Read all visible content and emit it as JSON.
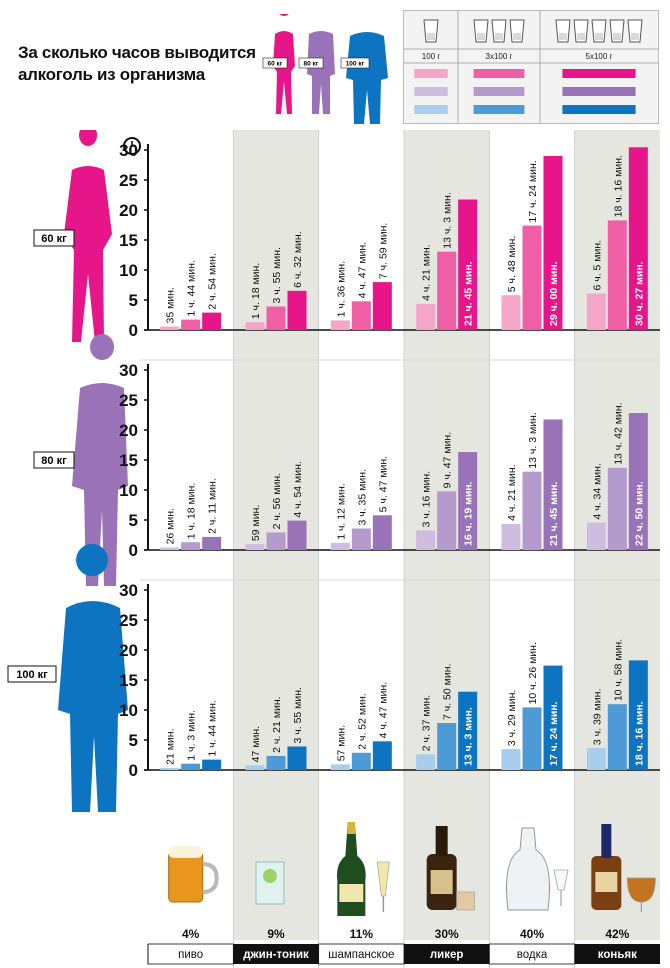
{
  "title": {
    "line1": "За сколько часов выводится",
    "line2": "алкоголь из организма"
  },
  "weights": [
    {
      "label": "60 кг",
      "color": "#e6168a"
    },
    {
      "label": "80 кг",
      "color": "#9a72b8"
    },
    {
      "label": "100 кг",
      "color": "#0c74c0"
    }
  ],
  "legend": {
    "columns": [
      "100 г",
      "3x100 г",
      "5x100 г"
    ],
    "glass_counts": [
      1,
      3,
      5
    ],
    "colors": [
      [
        "#f4a6c8",
        "#ee5fa6",
        "#e6168a"
      ],
      [
        "#cfbde0",
        "#b49acd",
        "#9a72b8"
      ],
      [
        "#a9cdec",
        "#4e9ad6",
        "#0c74c0"
      ]
    ]
  },
  "categories": [
    {
      "name": "пиво",
      "percent": "4%",
      "shaded": false,
      "dark_label": false
    },
    {
      "name": "джин-тоник",
      "percent": "9%",
      "shaded": true,
      "dark_label": true
    },
    {
      "name": "шампанское",
      "percent": "11%",
      "shaded": false,
      "dark_label": false
    },
    {
      "name": "ликер",
      "percent": "30%",
      "shaded": true,
      "dark_label": true
    },
    {
      "name": "водка",
      "percent": "40%",
      "shaded": false,
      "dark_label": false
    },
    {
      "name": "коньяк",
      "percent": "42%",
      "shaded": true,
      "dark_label": true
    }
  ],
  "chart_data": {
    "type": "bar",
    "ylim": [
      0,
      30
    ],
    "yticks": [
      0,
      5,
      10,
      15,
      20,
      25,
      30
    ],
    "y_unit_icon": "clock-icon",
    "panels": [
      {
        "weight": "60 кг",
        "series": [
          {
            "name": "100 г",
            "values": [
              0.58,
              1.3,
              1.6,
              4.35,
              5.8,
              6.08
            ],
            "labels": [
              "35 мин.",
              "1 ч. 18 мин.",
              "1 ч. 36 мин.",
              "4 ч. 21 мин.",
              "5 ч. 48 мин.",
              "6 ч. 5 мин."
            ]
          },
          {
            "name": "3x100 г",
            "values": [
              1.73,
              3.92,
              4.78,
              13.05,
              17.4,
              18.27
            ],
            "labels": [
              "1 ч. 44 мин.",
              "3 ч. 55 мин.",
              "4 ч. 47 мин.",
              "13 ч. 3 мин.",
              "17 ч. 24 мин.",
              "18 ч. 16 мин."
            ]
          },
          {
            "name": "5x100 г",
            "values": [
              2.9,
              6.53,
              7.98,
              21.75,
              29.0,
              30.45
            ],
            "labels": [
              "2 ч. 54 мин.",
              "6 ч. 32 мин.",
              "7 ч. 59 мин.",
              "21 ч. 45 мин.",
              "29 ч. 00 мин.",
              "30 ч. 27 мин."
            ]
          }
        ]
      },
      {
        "weight": "80 кг",
        "series": [
          {
            "name": "100 г",
            "values": [
              0.43,
              0.98,
              1.2,
              3.27,
              4.35,
              4.57
            ],
            "labels": [
              "26 мин.",
              "59 мин.",
              "1 ч. 12 мин.",
              "3 ч. 16 мин.",
              "4 ч. 21 мин.",
              "4 ч. 34 мин."
            ]
          },
          {
            "name": "3x100 г",
            "values": [
              1.3,
              2.93,
              3.58,
              9.78,
              13.05,
              13.7
            ],
            "labels": [
              "1 ч. 18 мин.",
              "2 ч. 56 мин.",
              "3 ч. 35 мин.",
              "9 ч. 47 мин.",
              "13 ч. 3 мин.",
              "13 ч. 42 мин."
            ]
          },
          {
            "name": "5x100 г",
            "values": [
              2.18,
              4.9,
              5.78,
              16.32,
              21.75,
              22.83
            ],
            "labels": [
              "2 ч. 11 мин.",
              "4 ч. 54 мин.",
              "5 ч. 47 мин.",
              "16 ч. 19 мин.",
              "21 ч. 45 мин.",
              "22 ч. 50 мин."
            ]
          }
        ]
      },
      {
        "weight": "100 кг",
        "series": [
          {
            "name": "100 г",
            "values": [
              0.35,
              0.78,
              0.95,
              2.62,
              3.48,
              3.65
            ],
            "labels": [
              "21 мин.",
              "47 мин.",
              "57 мин.",
              "2 ч. 37 мин.",
              "3 ч. 29 мин.",
              "3 ч. 39 мин."
            ]
          },
          {
            "name": "3x100 г",
            "values": [
              1.05,
              2.35,
              2.87,
              7.83,
              10.43,
              10.97
            ],
            "labels": [
              "1 ч. 3 мин.",
              "2 ч. 21 мин.",
              "2 ч. 52 мин.",
              "7 ч. 50 мин.",
              "10 ч. 26 мин.",
              "10 ч. 58 мин."
            ]
          },
          {
            "name": "5x100 г",
            "values": [
              1.73,
              3.92,
              4.78,
              13.05,
              17.4,
              18.27
            ],
            "labels": [
              "1 ч. 44 мин.",
              "3 ч. 55 мин.",
              "4 ч. 47 мин.",
              "13 ч. 3 мин.",
              "17 ч. 24 мин.",
              "18 ч. 16 мин."
            ]
          }
        ]
      }
    ]
  }
}
